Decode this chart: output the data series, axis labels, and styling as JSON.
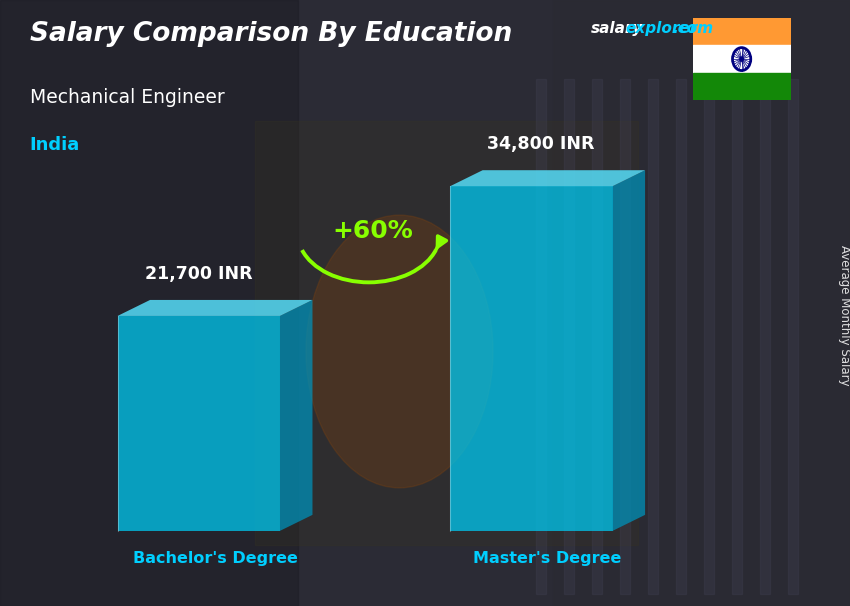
{
  "title": "Salary Comparison By Education",
  "subtitle": "Mechanical Engineer",
  "country": "India",
  "ylabel": "Average Monthly Salary",
  "categories": [
    "Bachelor's Degree",
    "Master's Degree"
  ],
  "values": [
    21700,
    34800
  ],
  "value_labels": [
    "21,700 INR",
    "34,800 INR"
  ],
  "pct_change": "+60%",
  "bar_color_face": "#00c8f0",
  "bar_color_dark": "#0090b8",
  "bar_color_top": "#55ddf8",
  "bar_alpha": 0.75,
  "title_color": "#ffffff",
  "subtitle_color": "#ffffff",
  "country_color": "#00cfff",
  "label_color": "#ffffff",
  "xlabel_color": "#00cfff",
  "bg_color": "#3a3a3a",
  "bg_overlay_color": "#1a1a2a",
  "site_salary_color": "#ffffff",
  "site_explorer_color": "#00cfff",
  "arrow_color": "#88ff00",
  "pct_color": "#88ff00",
  "figsize": [
    8.5,
    6.06
  ],
  "dpi": 100,
  "flag_colors": [
    "#FF9933",
    "#ffffff",
    "#138808"
  ],
  "flag_chakra_color": "#000080"
}
